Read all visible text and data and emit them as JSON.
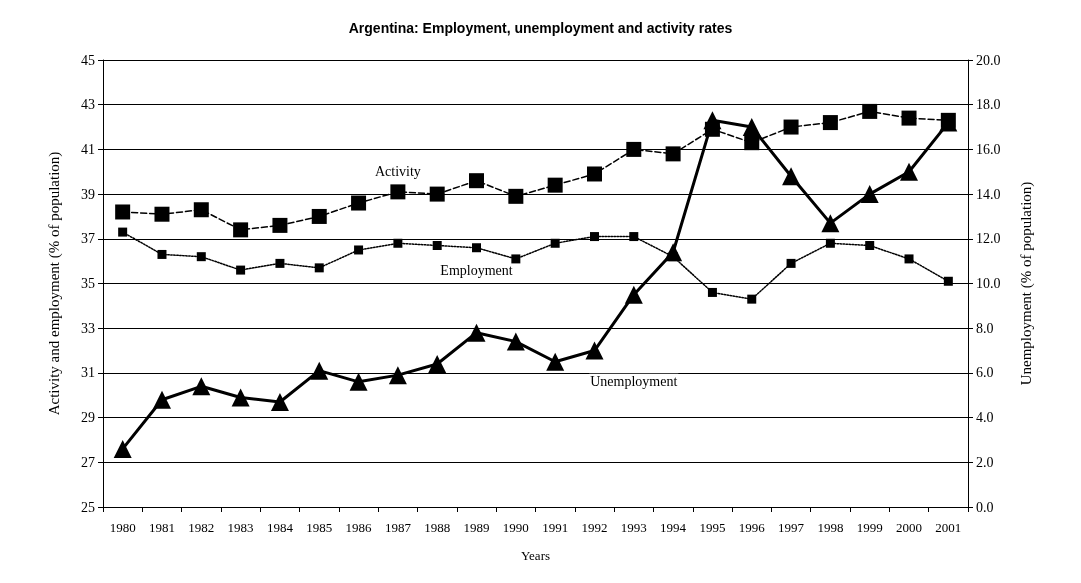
{
  "chart_data": {
    "type": "line",
    "title": "Argentina: Employment, unemployment and activity rates",
    "xlabel": "Years",
    "ylabel": "Activity and employment (% of population)",
    "y2label": "Unemployment (% of population)",
    "categories": [
      "1980",
      "1981",
      "1982",
      "1983",
      "1984",
      "1985",
      "1986",
      "1987",
      "1988",
      "1989",
      "1990",
      "1991",
      "1992",
      "1993",
      "1994",
      "1995",
      "1996",
      "1997",
      "1998",
      "1999",
      "2000",
      "2001"
    ],
    "series": [
      {
        "name": "Activity",
        "color": "#000000",
        "marker": "square",
        "line_style": "dashed",
        "values": [
          38.2,
          38.1,
          38.3,
          37.4,
          37.6,
          38.0,
          38.6,
          39.1,
          39.0,
          39.6,
          38.9,
          39.4,
          39.9,
          41.0,
          40.8,
          41.9,
          41.3,
          42.0,
          42.2,
          42.7,
          42.4,
          42.3
        ]
      },
      {
        "name": "Employment",
        "color": "#000000",
        "marker": "square",
        "line_style": "dotted",
        "values": [
          37.3,
          36.3,
          36.2,
          35.6,
          35.9,
          35.7,
          36.5,
          36.8,
          36.7,
          36.6,
          36.1,
          36.8,
          37.1,
          37.1,
          36.2,
          34.6,
          34.3,
          35.9,
          36.8,
          36.7,
          36.1,
          35.1
        ]
      },
      {
        "name": "Unemployment",
        "color": "#000000",
        "marker": "triangle",
        "line_style": "solid",
        "axis": "y2",
        "values": [
          2.6,
          4.8,
          5.4,
          4.9,
          4.7,
          6.1,
          5.6,
          5.9,
          6.4,
          7.8,
          7.4,
          6.5,
          7.0,
          9.5,
          11.4,
          17.3,
          17.0,
          14.8,
          12.7,
          14.0,
          15.0,
          17.2
        ]
      }
    ],
    "ylim": [
      25,
      45
    ],
    "yticks": [
      25,
      27,
      29,
      31,
      33,
      35,
      37,
      39,
      41,
      43,
      45
    ],
    "y2lim": [
      0,
      20
    ],
    "y2ticks": [
      {
        "value": 0,
        "label": "0.0"
      },
      {
        "value": 2,
        "label": "2.0"
      },
      {
        "value": 4,
        "label": "4.0"
      },
      {
        "value": 6,
        "label": "6.0"
      },
      {
        "value": 8,
        "label": "8.0"
      },
      {
        "value": 10,
        "label": "10.0"
      },
      {
        "value": 12,
        "label": "12.0"
      },
      {
        "value": 14,
        "label": "14.0"
      },
      {
        "value": 16,
        "label": "16.0"
      },
      {
        "value": 18,
        "label": "18.0"
      },
      {
        "value": 20,
        "label": "20.0"
      }
    ],
    "grid": "y",
    "legend": false
  }
}
